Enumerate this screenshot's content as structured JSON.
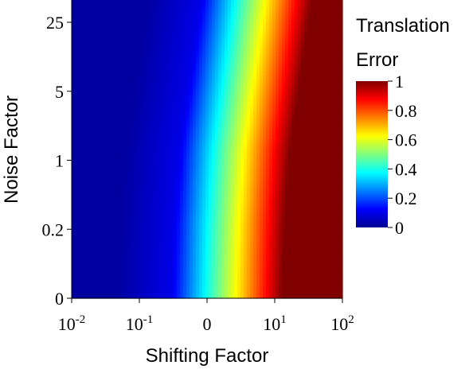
{
  "chart_data": {
    "type": "heatmap",
    "title": "",
    "xlabel": "Shifting Factor",
    "ylabel": "Noise Factor",
    "x_scale": "log-like (with 0 position)",
    "y_scale": "categorical-like log",
    "x_ticks": [
      {
        "base": "10",
        "exp": "-2"
      },
      {
        "base": "10",
        "exp": "-1"
      },
      {
        "base": "0",
        "exp": ""
      },
      {
        "base": "10",
        "exp": "1"
      },
      {
        "base": "10",
        "exp": "2"
      }
    ],
    "y_ticks": [
      "0",
      "0.2",
      "1",
      "5",
      "25"
    ],
    "colorbar": {
      "title_line1": "Translation",
      "title_line2": "Error",
      "ticks": [
        "0",
        "0.2",
        "0.4",
        "0.6",
        "0.8",
        "1"
      ],
      "range": [
        0,
        1
      ],
      "colormap": "jet"
    },
    "value_description_rows": [
      {
        "noise": "0",
        "transition_shift_position": 0.55
      },
      {
        "noise": "0.2",
        "transition_shift_position": 0.56
      },
      {
        "noise": "1",
        "transition_shift_position": 0.58
      },
      {
        "noise": "5",
        "transition_shift_position": 0.62
      },
      {
        "noise": "25",
        "transition_shift_position": 0.66
      }
    ],
    "grid": false,
    "legend": "right"
  }
}
